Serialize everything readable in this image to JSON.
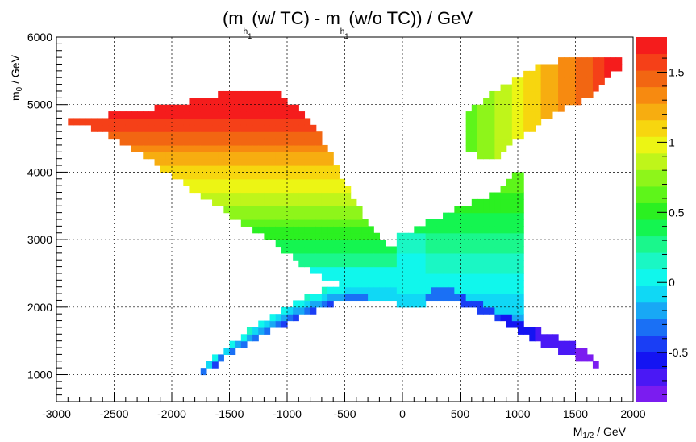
{
  "chart_data": {
    "type": "heatmap",
    "title": {
      "parts": [
        "(m",
        "h",
        "1",
        "(w/ TC) - m",
        "h",
        "1",
        "(w/o TC)) / GeV"
      ]
    },
    "xlabel": {
      "main": "M",
      "sub": "1/2",
      "rest": " / GeV"
    },
    "ylabel": {
      "main": "m",
      "sub": "0",
      "rest": " / GeV"
    },
    "xlim": [
      -3000,
      2000
    ],
    "ylim": [
      600,
      6000
    ],
    "xticks": [
      -3000,
      -2500,
      -2000,
      -1500,
      -1000,
      -500,
      0,
      500,
      1000,
      1500,
      2000
    ],
    "yticks": [
      1000,
      2000,
      3000,
      4000,
      5000,
      6000
    ],
    "grid": true,
    "colorbar": {
      "range": [
        -0.85,
        1.75
      ],
      "ticks": [
        "-0.5",
        "0",
        "0.5",
        "1",
        "1.5"
      ],
      "tick_values": [
        -0.5,
        0,
        0.5,
        1,
        1.5
      ],
      "colors": [
        "#7b1cf0",
        "#4a18f5",
        "#1414f2",
        "#1a3ef5",
        "#1a70f5",
        "#18a8f5",
        "#10d8f5",
        "#10f7ec",
        "#1af7c4",
        "#1af78c",
        "#14f550",
        "#2bf021",
        "#5ef51a",
        "#8ef51a",
        "#bff51a",
        "#ecf514",
        "#f7d60f",
        "#f7ad10",
        "#f78a10",
        "#f26612",
        "#f54018",
        "#f51c1c"
      ]
    },
    "regions": [
      {
        "name": "upper-left band",
        "x_range": [
          -2950,
          -750
        ],
        "y_top_at": [
          [
            -2950,
            4830
          ],
          [
            -1100,
            5230
          ],
          [
            -750,
            4700
          ]
        ],
        "value_range": [
          0.3,
          1.7
        ]
      },
      {
        "name": "upper-right band",
        "x_range": [
          550,
          1900
        ],
        "value_range": [
          0.6,
          1.7
        ]
      },
      {
        "name": "center cross",
        "value_range": [
          -0.85,
          0.6
        ]
      }
    ]
  }
}
